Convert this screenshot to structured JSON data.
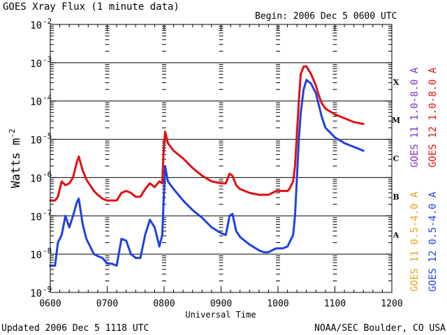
{
  "chart_data": {
    "type": "line",
    "title": "GOES Xray Flux (1 minute data)",
    "begin_label": "Begin: 2006 Dec 5 0600 UTC",
    "xlabel": "Universal Time",
    "ylabel": "Watts m",
    "ylabel_superscript": "-2",
    "yscale": "log",
    "xlim": [
      0,
      360
    ],
    "ylim_exponents": [
      -9,
      -2
    ],
    "x_tick_labels": [
      "0600",
      "0700",
      "0800",
      "0900",
      "1000",
      "1100",
      "1200"
    ],
    "y_tick_base": "10",
    "y_tick_exponents": [
      "-9",
      "-8",
      "-7",
      "-6",
      "-5",
      "-4",
      "-3",
      "-2"
    ],
    "flare_classes": [
      {
        "label": "A",
        "exponent": -7.5
      },
      {
        "label": "B",
        "exponent": -6.5
      },
      {
        "label": "C",
        "exponent": -5.5
      },
      {
        "label": "M",
        "exponent": -4.5
      },
      {
        "label": "X",
        "exponent": -3.5
      }
    ],
    "series": [
      {
        "name": "GOES 12 0.5-4.0 A",
        "color": "#2040e0",
        "x_minutes": [
          0,
          5,
          8,
          12,
          16,
          20,
          24,
          28,
          30,
          34,
          38,
          42,
          46,
          50,
          55,
          60,
          65,
          70,
          75,
          80,
          85,
          90,
          95,
          100,
          105,
          110,
          115,
          118,
          119.5,
          121,
          124,
          130,
          140,
          150,
          160,
          170,
          180,
          185,
          189,
          192,
          196,
          200,
          210,
          220,
          225,
          230,
          238,
          245,
          250,
          252,
          256,
          258,
          262,
          264,
          267,
          270,
          275,
          280,
          283,
          286,
          290,
          300,
          310,
          320,
          330
        ],
        "log_values": [
          -8.3,
          -8.3,
          -7.7,
          -7.5,
          -7.0,
          -7.3,
          -7.0,
          -6.65,
          -6.55,
          -7.2,
          -7.6,
          -7.8,
          -8.0,
          -8.05,
          -8.1,
          -8.25,
          -8.25,
          -8.3,
          -7.6,
          -7.65,
          -8.0,
          -8.1,
          -8.1,
          -7.5,
          -7.1,
          -7.3,
          -7.8,
          -7.5,
          -6.6,
          -5.7,
          -6.1,
          -6.3,
          -6.6,
          -6.85,
          -7.05,
          -7.3,
          -7.45,
          -7.5,
          -7.0,
          -6.95,
          -7.4,
          -7.55,
          -7.75,
          -7.9,
          -7.95,
          -7.95,
          -7.85,
          -7.85,
          -7.8,
          -7.7,
          -7.5,
          -7.0,
          -5.0,
          -4.3,
          -3.7,
          -3.45,
          -3.55,
          -3.8,
          -4.1,
          -4.4,
          -4.7,
          -4.95,
          -5.1,
          -5.2,
          -5.3
        ]
      },
      {
        "name": "GOES 12 1.0-8.0 A",
        "color": "#e01010",
        "x_minutes": [
          0,
          5,
          8,
          12,
          16,
          20,
          24,
          28,
          30,
          34,
          38,
          42,
          46,
          50,
          55,
          60,
          65,
          70,
          75,
          80,
          85,
          90,
          95,
          100,
          105,
          110,
          115,
          118,
          119.5,
          121,
          124,
          130,
          140,
          150,
          160,
          170,
          180,
          185,
          189,
          192,
          196,
          200,
          210,
          220,
          225,
          230,
          238,
          245,
          250,
          252,
          256,
          258,
          262,
          264,
          267,
          270,
          275,
          280,
          283,
          286,
          290,
          300,
          310,
          320,
          330
        ],
        "log_values": [
          -6.6,
          -6.6,
          -6.5,
          -6.1,
          -6.2,
          -6.15,
          -6.0,
          -5.6,
          -5.45,
          -5.8,
          -6.05,
          -6.2,
          -6.35,
          -6.45,
          -6.55,
          -6.6,
          -6.6,
          -6.6,
          -6.4,
          -6.35,
          -6.4,
          -6.5,
          -6.5,
          -6.3,
          -6.15,
          -6.25,
          -6.1,
          -6.15,
          -5.3,
          -4.8,
          -5.1,
          -5.3,
          -5.5,
          -5.75,
          -5.95,
          -6.1,
          -6.15,
          -6.15,
          -5.9,
          -5.95,
          -6.2,
          -6.3,
          -6.4,
          -6.45,
          -6.45,
          -6.45,
          -6.35,
          -6.35,
          -6.35,
          -6.3,
          -6.1,
          -5.7,
          -4.0,
          -3.3,
          -3.1,
          -3.1,
          -3.3,
          -3.6,
          -3.85,
          -4.05,
          -4.2,
          -4.35,
          -4.45,
          -4.55,
          -4.6
        ]
      }
    ],
    "legend_labels": [
      {
        "text": "GOES 11 0.5-4.0 A",
        "color": "#e8a020"
      },
      {
        "text": "GOES 12 0.5-4.0 A",
        "color": "#2040e0"
      },
      {
        "text": "GOES 11 1.0-8.0 A",
        "color": "#8030c0"
      },
      {
        "text": "GOES 12 1.0-8.0 A",
        "color": "#e01010"
      }
    ]
  },
  "footer": {
    "updated": "Updated 2006 Dec  5 1118 UTC",
    "credit": "NOAA/SEC Boulder, CO USA"
  }
}
